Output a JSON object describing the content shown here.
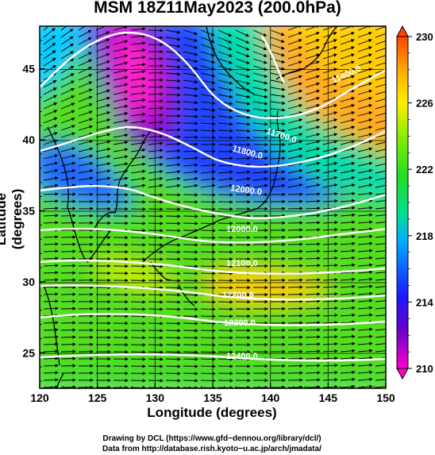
{
  "title": "MSM 18Z11May2023 (200.0hPa)",
  "axes": {
    "xlabel": "Longitude (degrees)",
    "ylabel": "Latitude  (degrees)",
    "x_ticks": [
      "120",
      "125",
      "130",
      "135",
      "140",
      "145",
      "150"
    ],
    "y_ticks": [
      "25",
      "30",
      "35",
      "40",
      "45"
    ],
    "xlim": [
      120,
      150
    ],
    "ylim": [
      22.5,
      48
    ]
  },
  "colorbar": {
    "ticks": [
      "210",
      "214",
      "218",
      "222",
      "226",
      "230"
    ],
    "range": [
      210,
      230
    ],
    "colors": [
      "#ff00cc",
      "#6600cc",
      "#1a1aff",
      "#00aaff",
      "#00e090",
      "#22dd22",
      "#88ee00",
      "#ffee00",
      "#ffaa00",
      "#ff4400"
    ]
  },
  "contours": {
    "labels": [
      "11400.0",
      "11700.0",
      "11800.0",
      "12000.0",
      "12100.0",
      "12200.0",
      "12300.0",
      "12400.0"
    ]
  },
  "credits": {
    "line1": "Drawing by DCL (https://www.gfd−dennou.org/library/dcl/)",
    "line2": "Data from http://database.rish.kyoto−u.ac.jp/arch/jmadata/"
  }
}
